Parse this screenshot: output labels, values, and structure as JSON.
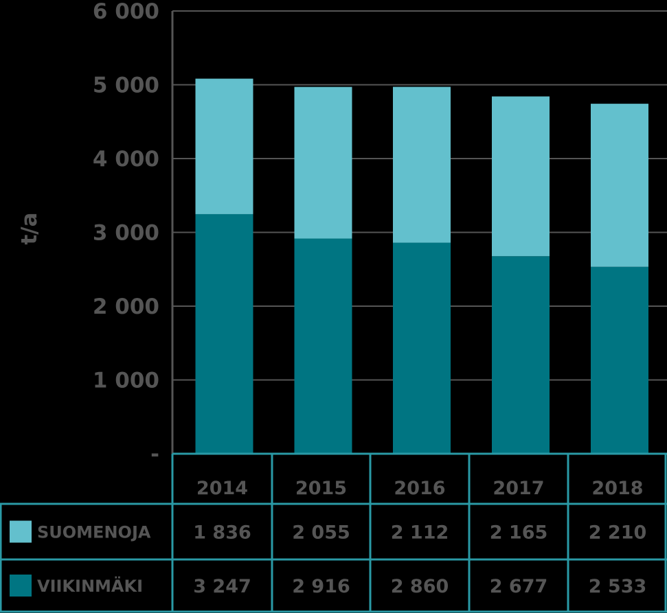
{
  "chart_data": {
    "type": "bar",
    "stacked": true,
    "categories": [
      "2014",
      "2015",
      "2016",
      "2017",
      "2018"
    ],
    "ylabel": "t/a",
    "ylim": [
      0,
      6000
    ],
    "yticks": [
      {
        "value": 0,
        "label": "-"
      },
      {
        "value": 1000,
        "label": "1 000"
      },
      {
        "value": 2000,
        "label": "2 000"
      },
      {
        "value": 3000,
        "label": "3 000"
      },
      {
        "value": 4000,
        "label": "4 000"
      },
      {
        "value": 5000,
        "label": "5 000"
      },
      {
        "value": 6000,
        "label": "6 000"
      }
    ],
    "grid": true,
    "legend": "data-table-below",
    "series": [
      {
        "name": "SUOMENOJA",
        "color": "#63c0cd",
        "values": [
          1836,
          2055,
          2112,
          2165,
          2210
        ],
        "labels": [
          "1 836",
          "2 055",
          "2 112",
          "2 165",
          "2 210"
        ]
      },
      {
        "name": "VIIKINMÄKI",
        "color": "#007582",
        "values": [
          3247,
          2916,
          2860,
          2677,
          2533
        ],
        "labels": [
          "3 247",
          "2 916",
          "2 860",
          "2 677",
          "2 533"
        ]
      }
    ],
    "table_border_color": "#2a9aa6"
  }
}
